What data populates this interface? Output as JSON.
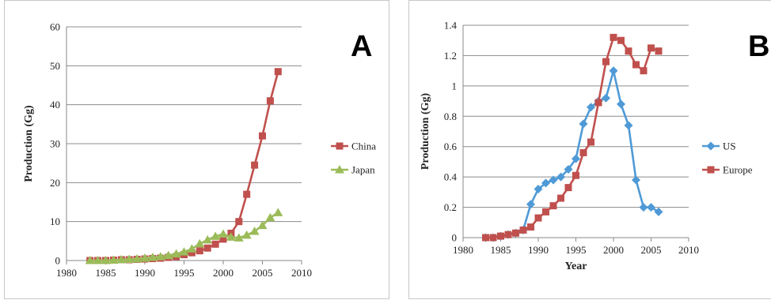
{
  "chart_data": [
    {
      "type": "line",
      "panel_label": "A",
      "xlabel": "",
      "ylabel": "Production (Gg)",
      "xlim": [
        1980,
        2010
      ],
      "ylim": [
        0,
        60
      ],
      "xticks": [
        1980,
        1985,
        1990,
        1995,
        2000,
        2005,
        2010
      ],
      "yticks": [
        0,
        10,
        20,
        30,
        40,
        50,
        60
      ],
      "grid": true,
      "legend": "right",
      "series": [
        {
          "name": "China",
          "color": "#c0504d",
          "marker": "square",
          "x": [
            1983,
            1984,
            1985,
            1986,
            1987,
            1988,
            1989,
            1990,
            1991,
            1992,
            1993,
            1994,
            1995,
            1996,
            1997,
            1998,
            1999,
            2000,
            2001,
            2002,
            2003,
            2004,
            2005,
            2006,
            2007
          ],
          "y": [
            0,
            0,
            0,
            0.1,
            0.2,
            0.2,
            0.3,
            0.4,
            0.5,
            0.6,
            0.8,
            1.0,
            1.5,
            2.0,
            2.5,
            3.2,
            4.2,
            5.5,
            7.0,
            10.0,
            17.0,
            24.5,
            32.0,
            41.0,
            48.5
          ]
        },
        {
          "name": "Japan",
          "color": "#9bbb59",
          "marker": "triangle",
          "x": [
            1983,
            1984,
            1985,
            1986,
            1987,
            1988,
            1989,
            1990,
            1991,
            1992,
            1993,
            1994,
            1995,
            1996,
            1997,
            1998,
            1999,
            2000,
            2001,
            2002,
            2003,
            2004,
            2005,
            2006,
            2007
          ],
          "y": [
            0,
            0,
            0,
            0.1,
            0.2,
            0.3,
            0.4,
            0.6,
            0.8,
            1.0,
            1.3,
            1.7,
            2.2,
            3.0,
            4.3,
            5.3,
            6.2,
            6.8,
            6.0,
            5.8,
            6.5,
            7.5,
            9.0,
            11.0,
            12.3
          ]
        }
      ]
    },
    {
      "type": "line",
      "panel_label": "B",
      "xlabel": "Year",
      "ylabel": "Production (Gg)",
      "xlim": [
        1980,
        2010
      ],
      "ylim": [
        0,
        1.4
      ],
      "xticks": [
        1980,
        1985,
        1990,
        1995,
        2000,
        2005,
        2010
      ],
      "yticks": [
        0,
        0.2,
        0.4,
        0.6,
        0.8,
        1,
        1.2,
        1.4
      ],
      "grid": true,
      "legend": "right",
      "series": [
        {
          "name": "US",
          "color": "#4f9ad6",
          "marker": "diamond",
          "x": [
            1983,
            1984,
            1985,
            1986,
            1987,
            1988,
            1989,
            1990,
            1991,
            1992,
            1993,
            1994,
            1995,
            1996,
            1997,
            1998,
            1999,
            2000,
            2001,
            2002,
            2003,
            2004,
            2005,
            2006
          ],
          "y": [
            0,
            0,
            0.01,
            0.02,
            0.03,
            0.05,
            0.22,
            0.32,
            0.36,
            0.38,
            0.4,
            0.45,
            0.52,
            0.75,
            0.86,
            0.9,
            0.92,
            1.1,
            0.88,
            0.74,
            0.38,
            0.2,
            0.2,
            0.17
          ]
        },
        {
          "name": "Europe",
          "color": "#c0504d",
          "marker": "square",
          "x": [
            1983,
            1984,
            1985,
            1986,
            1987,
            1988,
            1989,
            1990,
            1991,
            1992,
            1993,
            1994,
            1995,
            1996,
            1997,
            1998,
            1999,
            2000,
            2001,
            2002,
            2003,
            2004,
            2005,
            2006
          ],
          "y": [
            0,
            0,
            0.01,
            0.02,
            0.03,
            0.05,
            0.07,
            0.13,
            0.17,
            0.21,
            0.26,
            0.33,
            0.41,
            0.56,
            0.63,
            0.89,
            1.16,
            1.32,
            1.3,
            1.23,
            1.14,
            1.1,
            1.25,
            1.23
          ]
        }
      ]
    }
  ]
}
